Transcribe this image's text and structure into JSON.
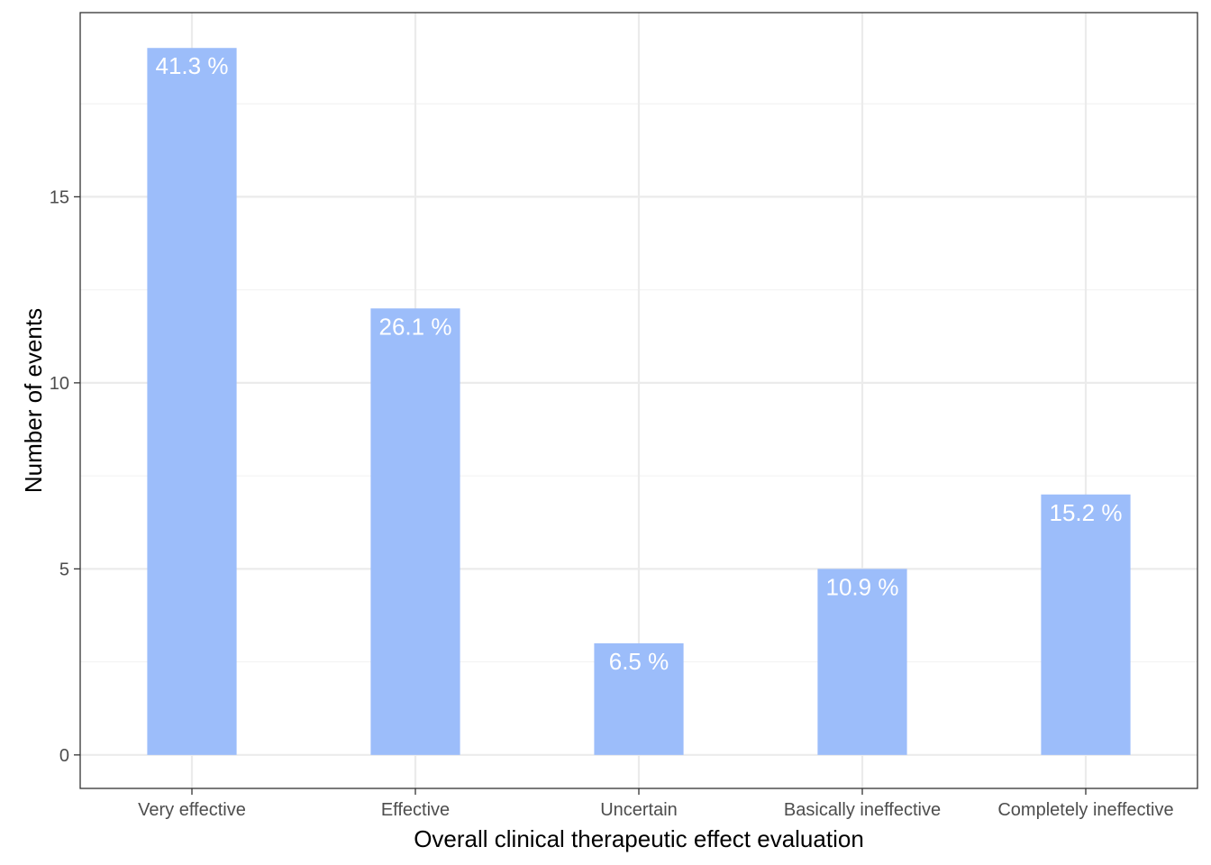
{
  "chart_data": {
    "type": "bar",
    "categories": [
      "Very effective",
      "Effective",
      "Uncertain",
      "Basically ineffective",
      "Completely ineffective"
    ],
    "values": [
      19,
      12,
      3,
      5,
      7
    ],
    "data_labels": [
      "41.3 %",
      "26.1 %",
      "6.5 %",
      "10.9 %",
      "15.2 %"
    ],
    "title": "",
    "xlabel": "Overall clinical therapeutic effect evaluation",
    "ylabel": "Number of events",
    "ylim": [
      -0.9,
      19.95
    ],
    "yticks": [
      0,
      5,
      10,
      15
    ],
    "yticks_minor": [
      2.5,
      7.5,
      12.5,
      17.5
    ],
    "grid": true,
    "legend": "none",
    "colors": {
      "bar": "#99bbfa",
      "panel_border": "#333333",
      "grid_major": "#ebebeb",
      "grid_minor": "#f2f2f2",
      "tick": "#333333"
    }
  }
}
